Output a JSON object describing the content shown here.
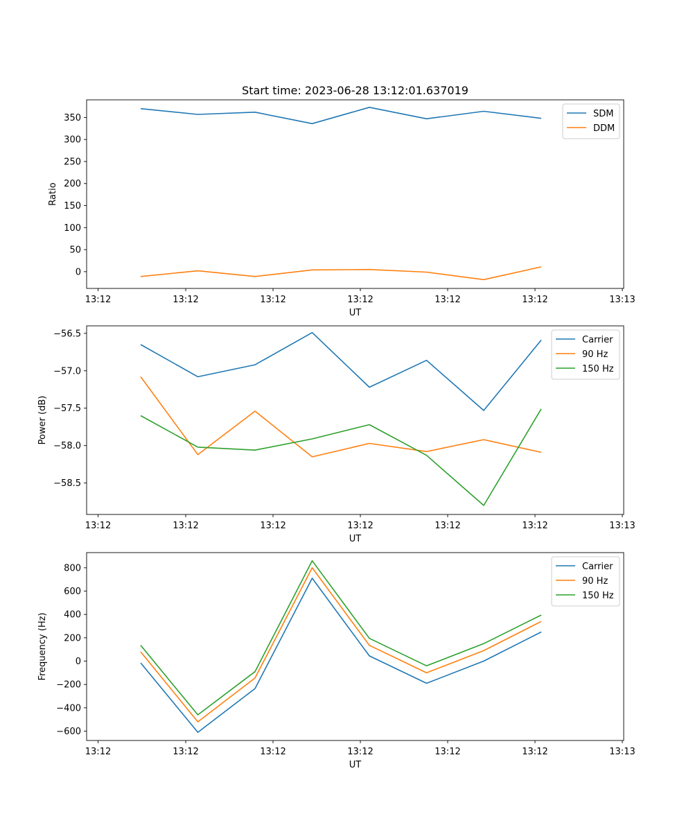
{
  "figure": {
    "title": "Start time: 2023-06-28 13:12:01.637019"
  },
  "chart_data": [
    {
      "type": "line",
      "title": "Start time: 2023-06-28 13:12:01.637019",
      "xlabel": "UT",
      "ylabel": "Ratio",
      "x_tick_labels": [
        "13:12",
        "13:12",
        "13:12",
        "13:12",
        "13:12",
        "13:12",
        "13:12"
      ],
      "x_end_tick_label": "13:13",
      "y_ticks": [
        0,
        50,
        100,
        150,
        200,
        250,
        300,
        350
      ],
      "ylim": [
        -38,
        390
      ],
      "legend_position": "top-right",
      "series": [
        {
          "name": "SDM",
          "color": "#1f77b4",
          "values": [
            370,
            357,
            362,
            336,
            373,
            347,
            364,
            348
          ]
        },
        {
          "name": "DDM",
          "color": "#ff7f0e",
          "values": [
            -11,
            2,
            -11,
            4,
            5,
            -1,
            -18,
            11
          ]
        }
      ]
    },
    {
      "type": "line",
      "xlabel": "UT",
      "ylabel": "Power (dB)",
      "x_tick_labels": [
        "13:12",
        "13:12",
        "13:12",
        "13:12",
        "13:12",
        "13:12",
        "13:12"
      ],
      "x_end_tick_label": "13:13",
      "y_ticks": [
        -58.5,
        -58.0,
        -57.5,
        -57.0,
        -56.5
      ],
      "y_tick_labels": [
        "−58.5",
        "−58.0",
        "−57.5",
        "−57.0",
        "−56.5"
      ],
      "ylim": [
        -58.92,
        -56.4
      ],
      "legend_position": "top-right",
      "series": [
        {
          "name": "Carrier",
          "color": "#1f77b4",
          "values": [
            -56.65,
            -57.08,
            -56.92,
            -56.49,
            -57.22,
            -56.86,
            -57.53,
            -56.59
          ]
        },
        {
          "name": "90 Hz",
          "color": "#ff7f0e",
          "values": [
            -57.08,
            -58.12,
            -57.54,
            -58.15,
            -57.97,
            -58.08,
            -57.92,
            -58.09
          ]
        },
        {
          "name": "150 Hz",
          "color": "#2ca02c",
          "values": [
            -57.6,
            -58.02,
            -58.06,
            -57.91,
            -57.72,
            -58.13,
            -58.8,
            -57.51
          ]
        }
      ]
    },
    {
      "type": "line",
      "xlabel": "UT",
      "ylabel": "Frequency (Hz)",
      "x_tick_labels": [
        "13:12",
        "13:12",
        "13:12",
        "13:12",
        "13:12",
        "13:12",
        "13:12"
      ],
      "x_end_tick_label": "13:13",
      "y_ticks": [
        -600,
        -400,
        -200,
        0,
        200,
        400,
        600,
        800
      ],
      "y_tick_labels": [
        "−600",
        "−400",
        "−200",
        "0",
        "200",
        "400",
        "600",
        "800"
      ],
      "ylim": [
        -680,
        930
      ],
      "legend_position": "top-right",
      "series": [
        {
          "name": "Carrier",
          "color": "#1f77b4",
          "values": [
            -15,
            -610,
            -235,
            710,
            45,
            -190,
            0,
            250
          ]
        },
        {
          "name": "90 Hz",
          "color": "#ff7f0e",
          "values": [
            80,
            -520,
            -145,
            800,
            135,
            -100,
            90,
            340
          ]
        },
        {
          "name": "150 Hz",
          "color": "#2ca02c",
          "values": [
            135,
            -460,
            -90,
            860,
            195,
            -40,
            150,
            395
          ]
        }
      ]
    }
  ]
}
